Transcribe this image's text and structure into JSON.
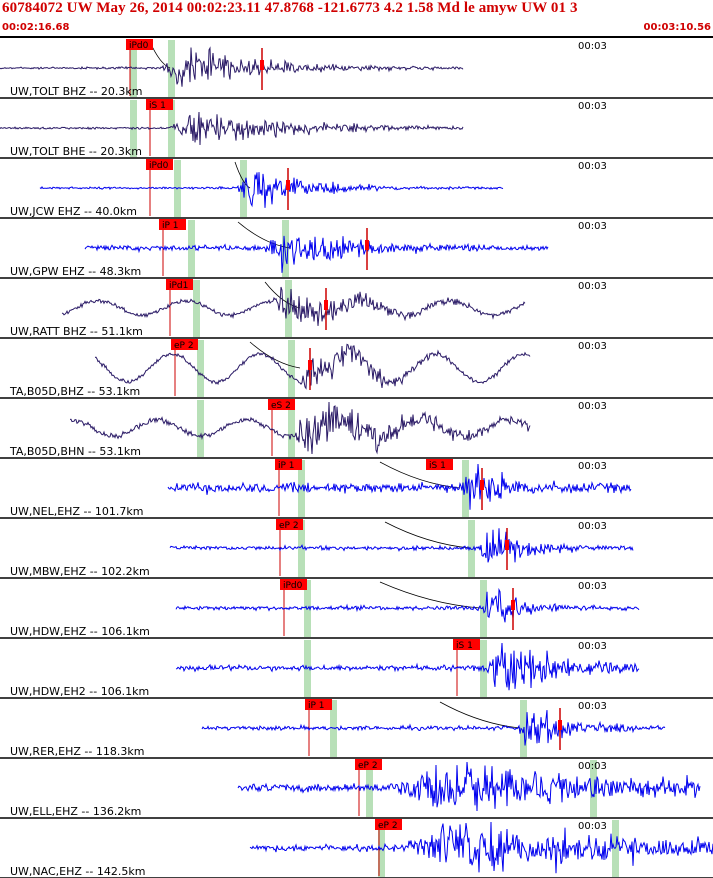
{
  "header": {
    "title": "60784072 UW May 26, 2014 00:02:23.11   47.8768 -121.6773  4.2 1.58 Md le amyw UW 01   3",
    "time_start": "00:02:16.68",
    "time_end": "00:03:10.56"
  },
  "colors": {
    "header_text": "#d00000",
    "pick_box": "#ff0000",
    "shade": "#b8e0b8",
    "trace_bhz": "#2a1a66",
    "trace_ehz": "#0000ee"
  },
  "channels": [
    {
      "label": "UW,TOLT BHZ -- 20.3km",
      "minute": "00:03",
      "pick": "iPd0",
      "color": "bhz"
    },
    {
      "label": "UW,TOLT BHE -- 20.3km",
      "minute": "00:03",
      "pick": "iS 1",
      "color": "bhz"
    },
    {
      "label": "UW,JCW EHZ -- 40.0km",
      "minute": "00:03",
      "pick": "iPd0",
      "color": "ehz"
    },
    {
      "label": "UW,GPW EHZ -- 48.3km",
      "minute": "00:03",
      "pick": "iP 1",
      "color": "ehz"
    },
    {
      "label": "UW,RATT BHZ -- 51.1km",
      "minute": "00:03",
      "pick": "iPd1",
      "color": "bhz"
    },
    {
      "label": "TA,B05D,BHZ -- 53.1km",
      "minute": "00:03",
      "pick": "eP 2",
      "color": "bhz"
    },
    {
      "label": "TA,B05D,BHN -- 53.1km",
      "minute": "00:03",
      "pick": "eS 2",
      "color": "bhz"
    },
    {
      "label": "UW,NEL,EHZ -- 101.7km",
      "minute": "00:03",
      "pick": "iP 1",
      "pick2": "iS 1",
      "color": "ehz"
    },
    {
      "label": "UW,MBW,EHZ -- 102.2km",
      "minute": "00:03",
      "pick": "eP 2",
      "color": "ehz"
    },
    {
      "label": "UW,HDW,EHZ -- 106.1km",
      "minute": "00:03",
      "pick": "iPd0",
      "color": "ehz"
    },
    {
      "label": "UW,HDW,EH2 -- 106.1km",
      "minute": "00:03",
      "pick": "iS 1",
      "color": "ehz"
    },
    {
      "label": "UW,RER,EHZ -- 118.3km",
      "minute": "00:03",
      "pick": "iP 1",
      "color": "ehz"
    },
    {
      "label": "UW,ELL,EHZ -- 136.2km",
      "minute": "00:03",
      "pick": "eP 2",
      "color": "ehz"
    },
    {
      "label": "UW,NAC,EHZ -- 142.5km",
      "minute": "00:03",
      "pick": "eP 2",
      "color": "ehz"
    }
  ]
}
